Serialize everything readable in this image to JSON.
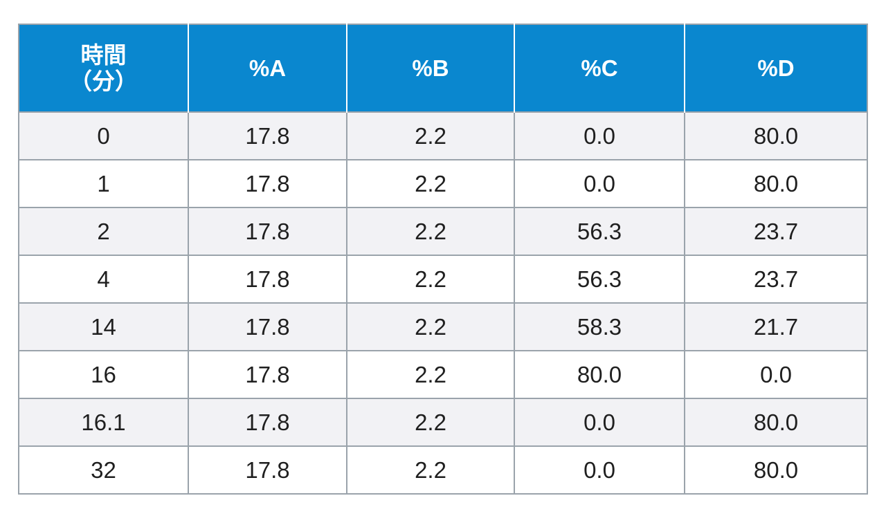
{
  "table": {
    "header_color": "#0a87cf",
    "columns": [
      {
        "line1": "時間",
        "line2": "（分）"
      },
      {
        "line1": "%A"
      },
      {
        "line1": "%B"
      },
      {
        "line1": "%C"
      },
      {
        "line1": "%D"
      }
    ],
    "rows": [
      [
        "0",
        "17.8",
        "2.2",
        "0.0",
        "80.0"
      ],
      [
        "1",
        "17.8",
        "2.2",
        "0.0",
        "80.0"
      ],
      [
        "2",
        "17.8",
        "2.2",
        "56.3",
        "23.7"
      ],
      [
        "4",
        "17.8",
        "2.2",
        "56.3",
        "23.7"
      ],
      [
        "14",
        "17.8",
        "2.2",
        "58.3",
        "21.7"
      ],
      [
        "16",
        "17.8",
        "2.2",
        "80.0",
        "0.0"
      ],
      [
        "16.1",
        "17.8",
        "2.2",
        "0.0",
        "80.0"
      ],
      [
        "32",
        "17.8",
        "2.2",
        "0.0",
        "80.0"
      ]
    ]
  }
}
